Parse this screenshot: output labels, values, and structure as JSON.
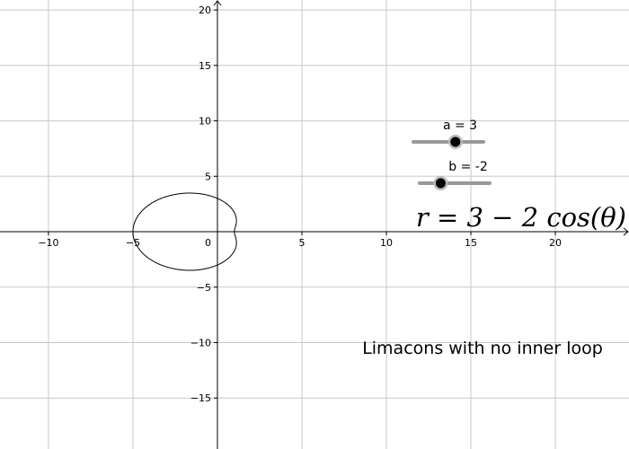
{
  "chart_data": {
    "type": "polar",
    "formula": "r = 3 − 2 cos(θ)",
    "caption": "Limacons with no inner loop",
    "sliders": [
      {
        "name": "a",
        "value": 3,
        "label": "a = 3",
        "range": [
          0,
          5
        ]
      },
      {
        "name": "b",
        "value": -2,
        "label": "b = -2",
        "range": [
          -5,
          5
        ]
      }
    ],
    "xlim": [
      -12.87,
      24.36
    ],
    "ylim": [
      -19.6,
      20.9
    ],
    "xticks": [
      {
        "value": -10,
        "label": "−10"
      },
      {
        "value": -5,
        "label": "−5"
      },
      0,
      5,
      10,
      15,
      20
    ],
    "yticks": [
      {
        "value": -15,
        "label": "−15"
      },
      {
        "value": -10,
        "label": "−10"
      },
      {
        "value": -5,
        "label": "−5"
      },
      5,
      10,
      15,
      20
    ],
    "grid": true
  }
}
